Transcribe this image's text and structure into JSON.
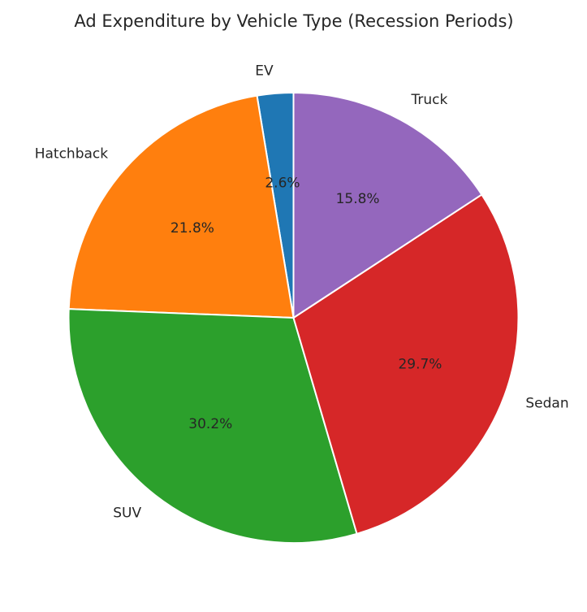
{
  "chart_data": {
    "type": "pie",
    "title": "Ad Expenditure by Vehicle Type (Recession Periods)",
    "start_angle_deg": 90,
    "direction": "counterclockwise",
    "slices": [
      {
        "label": "EV",
        "value": 2.6,
        "pct_label": "2.6%",
        "color": "#1f77b4"
      },
      {
        "label": "Hatchback",
        "value": 21.8,
        "pct_label": "21.8%",
        "color": "#ff7f0e"
      },
      {
        "label": "SUV",
        "value": 30.2,
        "pct_label": "30.2%",
        "color": "#2ca02c"
      },
      {
        "label": "Sedan",
        "value": 29.7,
        "pct_label": "29.7%",
        "color": "#d62728"
      },
      {
        "label": "Truck",
        "value": 15.8,
        "pct_label": "15.8%",
        "color": "#9467bd"
      }
    ]
  }
}
